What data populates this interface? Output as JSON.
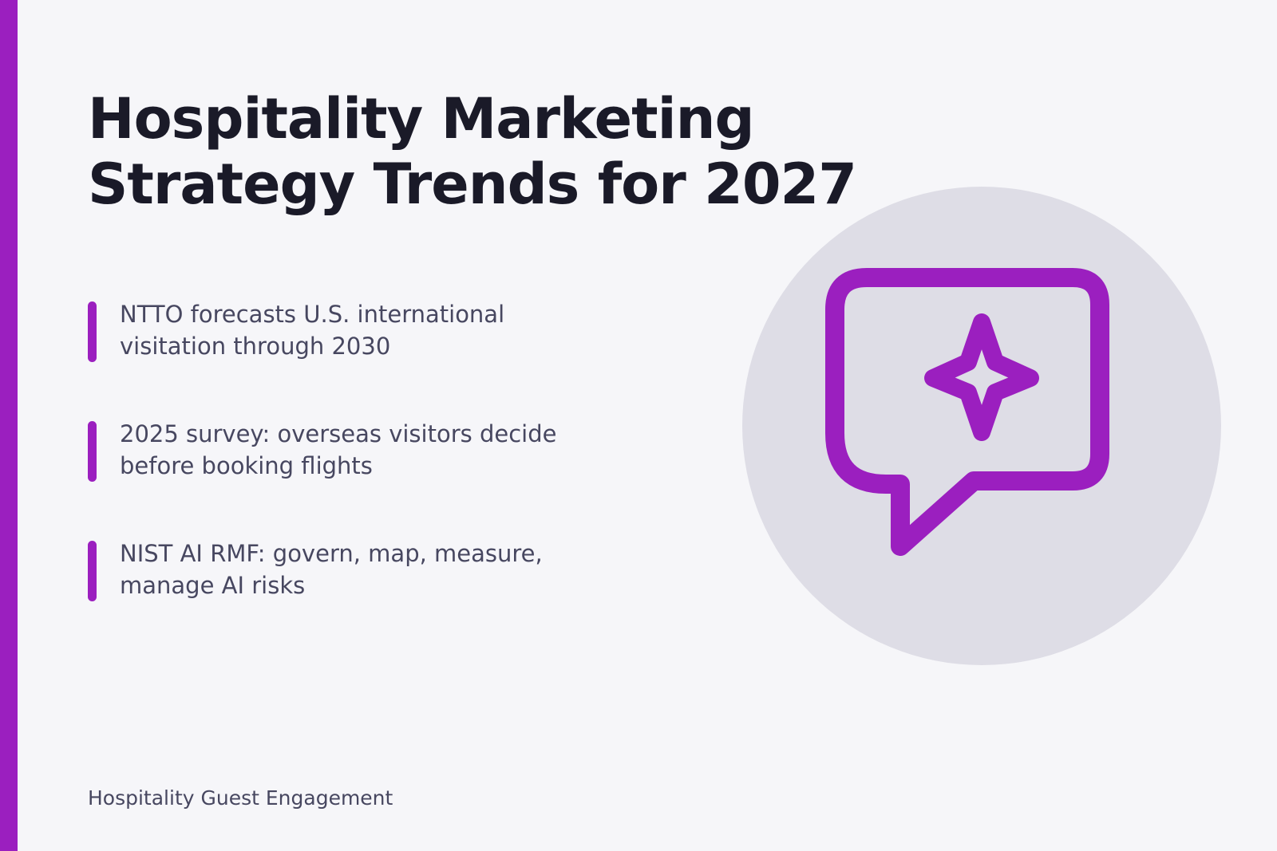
{
  "title": "Hospitality Marketing Strategy Trends for 2027",
  "bullets": [
    "NTTO forecasts U.S. international visitation through 2030",
    "2025 survey: overseas visitors decide before booking flights",
    "NIST AI RMF: govern, map, measure, manage AI risks"
  ],
  "footer": "Hospitality Guest Engagement",
  "icon": "chat-bubble-sparkle-icon",
  "colors": {
    "accent": "#9b1fbf",
    "background": "#f6f6f9",
    "title": "#1a1a28",
    "text": "#474760",
    "circle": "#dedde6"
  }
}
